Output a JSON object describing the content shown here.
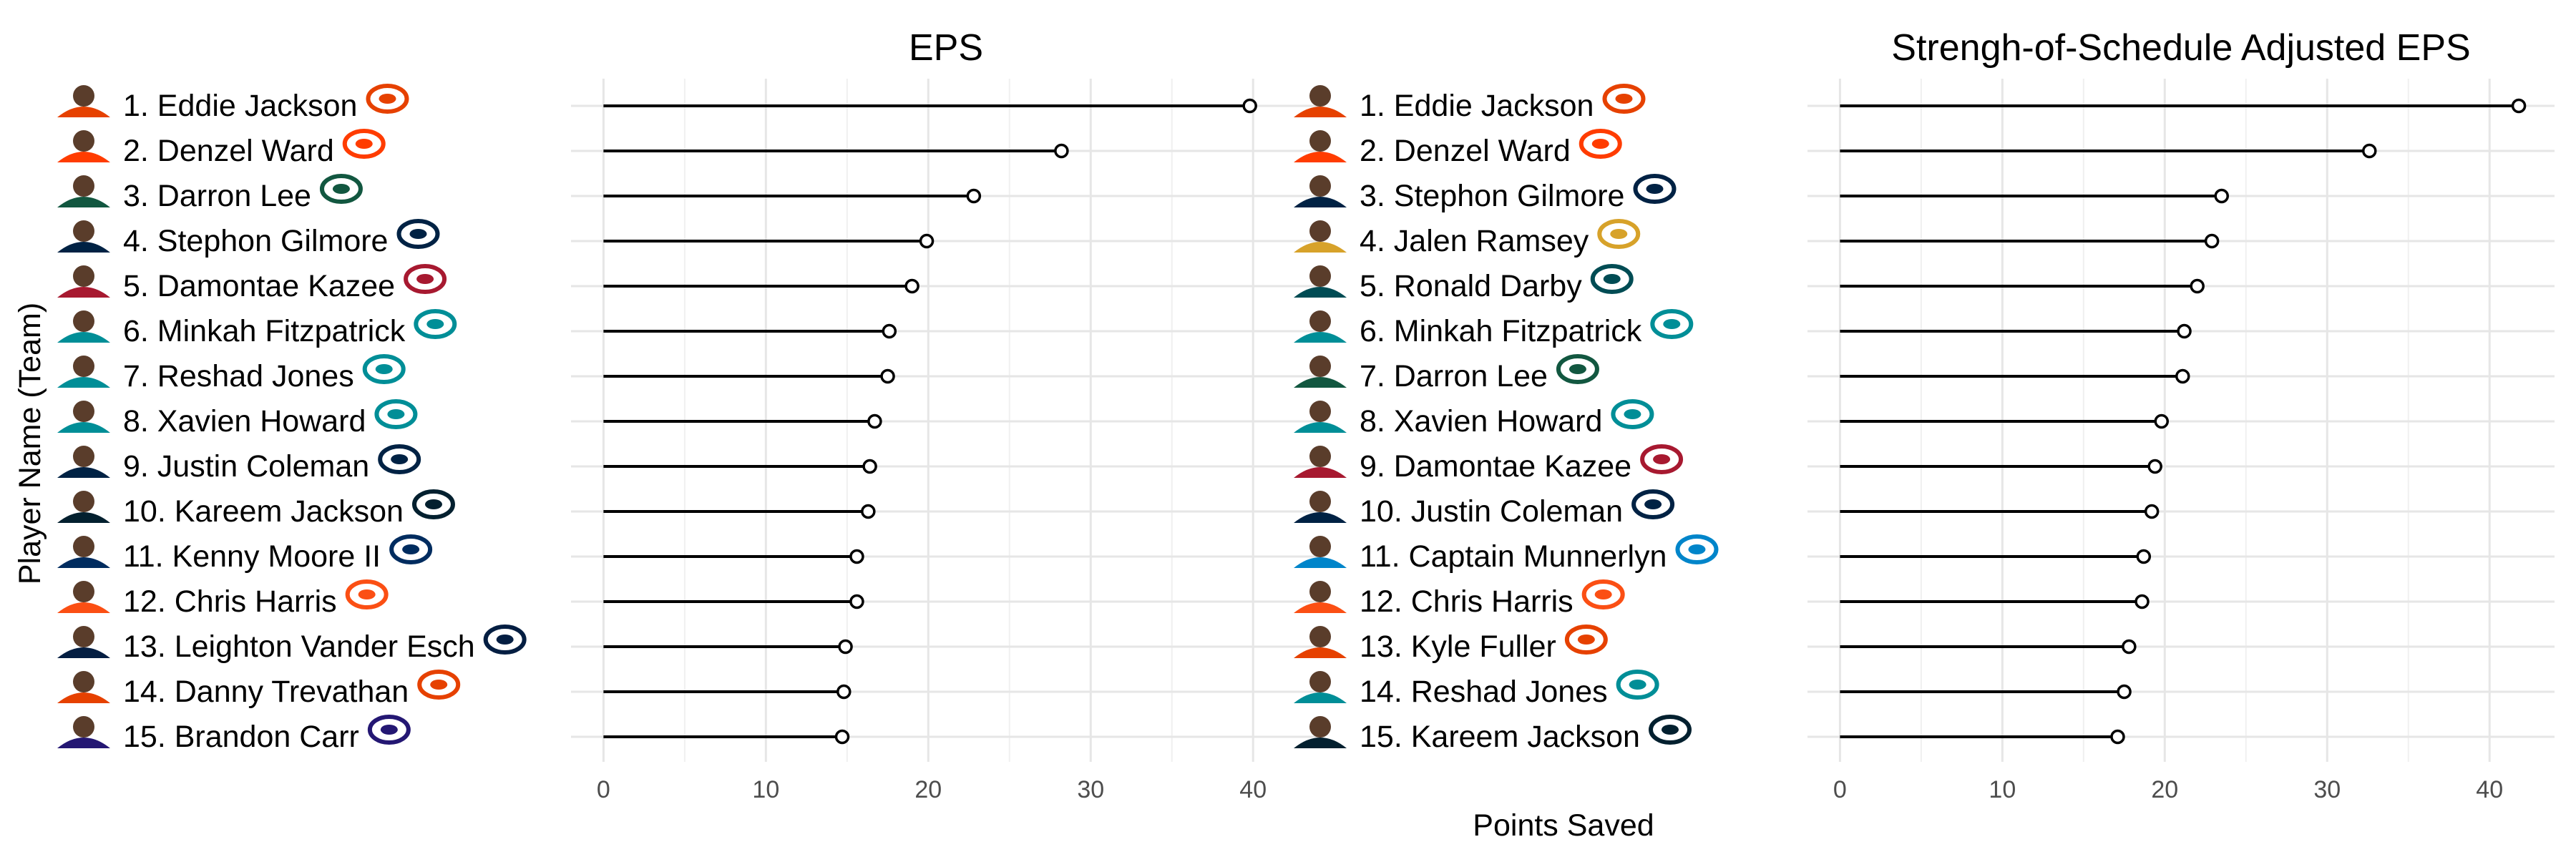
{
  "figure": {
    "y_axis_title": "Player Name (Team)",
    "x_axis_title": "Points Saved"
  },
  "chart_data": [
    {
      "type": "lollipop",
      "title": "EPS",
      "xlabel": "Points Saved",
      "ylabel": "Player Name (Team)",
      "xlim": [
        -2,
        44
      ],
      "xticks": [
        0,
        10,
        20,
        30,
        40
      ],
      "grid": true,
      "categories": [
        "1. Eddie Jackson",
        "2. Denzel Ward",
        "3. Darron Lee",
        "4. Stephon Gilmore",
        "5. Damontae Kazee",
        "6. Minkah Fitzpatrick",
        "7. Reshad Jones",
        "8. Xavien Howard",
        "9. Justin Coleman",
        "10. Kareem Jackson",
        "11. Kenny Moore II",
        "12. Chris Harris",
        "13. Leighton Vander Esch",
        "14. Danny Trevathan",
        "15. Brandon Carr"
      ],
      "values": [
        39.8,
        28.2,
        22.8,
        19.9,
        19.0,
        17.6,
        17.5,
        16.7,
        16.4,
        16.3,
        15.6,
        15.6,
        14.9,
        14.8,
        14.7
      ],
      "teams": [
        "bears",
        "browns",
        "jets",
        "patriots",
        "falcons",
        "dolphins",
        "dolphins",
        "dolphins",
        "seahawks",
        "texans",
        "colts",
        "broncos",
        "cowboys",
        "bears",
        "ravens"
      ]
    },
    {
      "type": "lollipop",
      "title": "Strengh-of-Schedule Adjusted EPS",
      "xlabel": "Points Saved",
      "ylabel": "Player Name (Team)",
      "xlim": [
        -2,
        44
      ],
      "xticks": [
        0,
        10,
        20,
        30,
        40
      ],
      "grid": true,
      "categories": [
        "1. Eddie Jackson",
        "2. Denzel Ward",
        "3. Stephon Gilmore",
        "4. Jalen Ramsey",
        "5. Ronald Darby",
        "6. Minkah Fitzpatrick",
        "7. Darron Lee",
        "8. Xavien Howard",
        "9. Damontae Kazee",
        "10. Justin Coleman",
        "11. Captain Munnerlyn",
        "12. Chris Harris",
        "13. Kyle Fuller",
        "14. Reshad Jones",
        "15. Kareem Jackson"
      ],
      "values": [
        41.8,
        32.6,
        23.5,
        22.9,
        22.0,
        21.2,
        21.1,
        19.8,
        19.4,
        19.2,
        18.7,
        18.6,
        17.8,
        17.5,
        17.1
      ],
      "teams": [
        "bears",
        "browns",
        "patriots",
        "jaguars",
        "eagles",
        "dolphins",
        "jets",
        "dolphins",
        "falcons",
        "seahawks",
        "panthers",
        "broncos",
        "bears",
        "dolphins",
        "texans"
      ]
    }
  ],
  "colors": {
    "bears": "#E64100",
    "browns": "#FF3C00",
    "jets": "#125740",
    "patriots": "#002244",
    "falcons": "#A71930",
    "dolphins": "#008E97",
    "seahawks": "#002244",
    "texans": "#03202F",
    "colts": "#002C5F",
    "broncos": "#FB4F14",
    "cowboys": "#041E42",
    "ravens": "#241773",
    "jaguars": "#D7A22A",
    "eagles": "#004C54",
    "panthers": "#0085CA"
  }
}
